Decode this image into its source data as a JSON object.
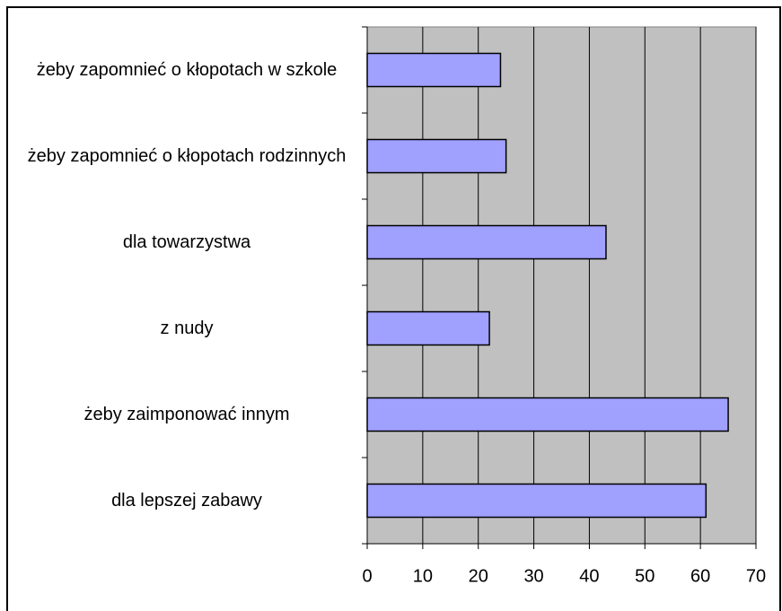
{
  "chart_data": {
    "type": "barh",
    "categories": [
      "żeby zapomnieć o kłopotach w szkole",
      "żeby zapomnieć o kłopotach rodzinnych",
      "dla towarzystwa",
      "z nudy",
      "żeby zaimponować innym",
      "dla lepszej zabawy"
    ],
    "values": [
      24,
      25,
      43,
      22,
      65,
      61
    ],
    "color": "#a0a0ff",
    "xlim": [
      0,
      70
    ],
    "xticks": [
      0,
      10,
      20,
      30,
      40,
      50,
      60,
      70
    ],
    "grid": true
  }
}
